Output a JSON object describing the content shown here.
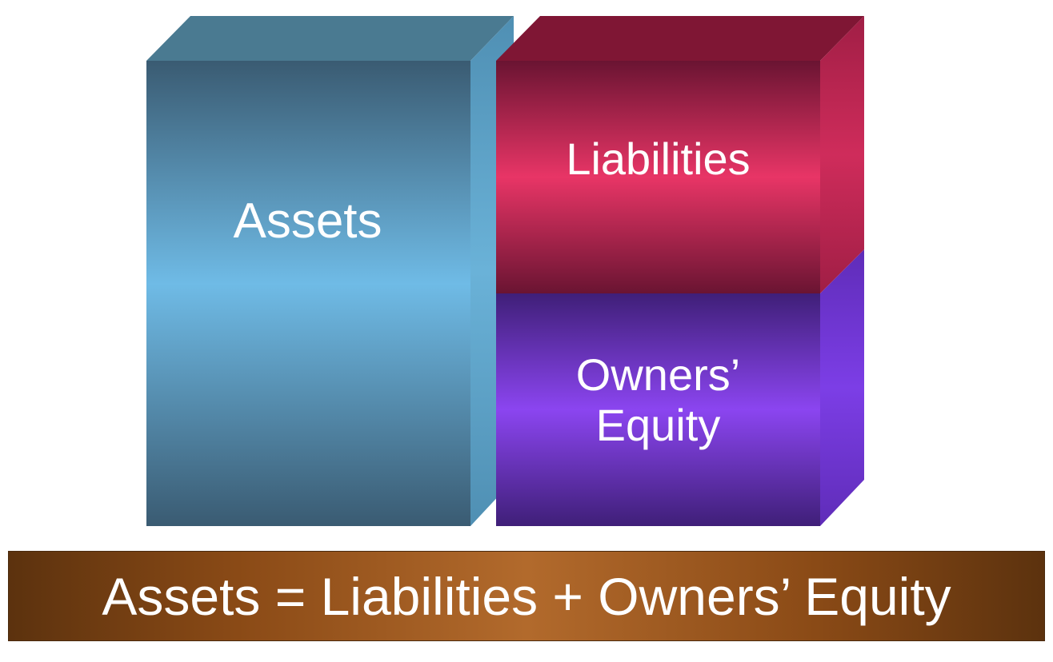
{
  "blocks": {
    "assets": {
      "label": "Assets",
      "colors": {
        "front_dark": "#3a5b72",
        "front_light": "#6fbbe6",
        "top": "#4a7a91",
        "side": "#5aa6cc"
      }
    },
    "liabilities": {
      "label": "Liabilities",
      "colors": {
        "front_dark": "#6a1432",
        "front_light": "#e83566",
        "top": "#7f1634",
        "side": "#c02a55"
      }
    },
    "owners_equity": {
      "label_lines": [
        "Owners’",
        "Equity"
      ],
      "colors": {
        "front_dark": "#3f1f78",
        "front_light": "#8b45f0",
        "side": "#7338dc"
      }
    }
  },
  "equation": {
    "text": "Assets = Liabilities + Owners’ Equity",
    "colors": {
      "edge": "#5c320e",
      "center": "#b26a2c",
      "text": "#ffffff"
    }
  }
}
